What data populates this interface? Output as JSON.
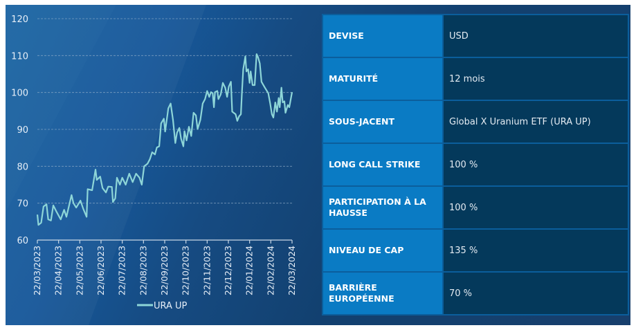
{
  "colors": {
    "line": "#8ed6d8",
    "grid": "#9fb8d0",
    "label_bg": "#0a7bc4",
    "value_bg": "#04395b"
  },
  "chart_data": {
    "type": "line",
    "title": "",
    "xlabel": "",
    "ylabel": "",
    "ylim": [
      60,
      120
    ],
    "yticks": [
      "60",
      "70",
      "80",
      "90",
      "100",
      "110",
      "120"
    ],
    "xticks": [
      "22/03/2023",
      "22/04/2023",
      "22/05/2023",
      "22/06/2023",
      "22/07/2023",
      "22/08/2023",
      "22/09/2023",
      "22/10/2023",
      "22/11/2023",
      "22/12/2023",
      "22/01/2024",
      "22/02/2024",
      "22/03/2024"
    ],
    "x_unit": "months since 22/03/2023",
    "grid": true,
    "legend": {
      "placement": "bottom",
      "entries": [
        "URA UP"
      ]
    },
    "series": [
      {
        "name": "URA UP",
        "x": [
          0,
          0.05,
          0.18,
          0.29,
          0.43,
          0.51,
          0.64,
          0.75,
          0.89,
          1.1,
          1.26,
          1.37,
          1.61,
          1.7,
          1.83,
          2.03,
          2.16,
          2.32,
          2.37,
          2.58,
          2.74,
          2.8,
          2.96,
          3.07,
          3.23,
          3.34,
          3.51,
          3.56,
          3.67,
          3.75,
          3.89,
          4,
          4.16,
          4.33,
          4.49,
          4.65,
          4.81,
          4.92,
          5.03,
          5.19,
          5.3,
          5.41,
          5.54,
          5.63,
          5.74,
          5.83,
          5.96,
          6.02,
          6.17,
          6.28,
          6.39,
          6.5,
          6.58,
          6.69,
          6.77,
          6.88,
          6.93,
          7.03,
          7.14,
          7.25,
          7.36,
          7.47,
          7.55,
          7.68,
          7.79,
          7.9,
          8,
          8.1,
          8.18,
          8.26,
          8.32,
          8.37,
          8.48,
          8.53,
          8.64,
          8.74,
          8.85,
          8.94,
          9.02,
          9.12,
          9.18,
          9.34,
          9.42,
          9.5,
          9.59,
          9.64,
          9.7,
          9.8,
          9.85,
          9.93,
          10,
          10.05,
          10.14,
          10.24,
          10.33,
          10.4,
          10.48,
          10.56,
          10.72,
          10.88,
          10.97,
          11.05,
          11.12,
          11.21,
          11.29,
          11.37,
          11.42,
          11.5,
          11.56,
          11.64,
          11.69,
          11.8,
          11.87,
          12
        ],
        "values": [
          66.9,
          64.1,
          64.7,
          69.1,
          69.7,
          65.6,
          65.3,
          69.4,
          67.8,
          65.6,
          68.2,
          66.3,
          72.2,
          70,
          68.8,
          70.7,
          68.5,
          66.3,
          73.8,
          73.5,
          79.1,
          76.3,
          77.2,
          74.1,
          72.9,
          74.5,
          74.4,
          70.3,
          71.3,
          76.9,
          75,
          76.9,
          75,
          78,
          75.7,
          78,
          76.9,
          75,
          80,
          80.7,
          81.9,
          83.8,
          83.2,
          85.1,
          85.4,
          91.6,
          92.9,
          89.4,
          95.7,
          97,
          92.6,
          86.3,
          89.1,
          90.4,
          87.5,
          85.4,
          89.5,
          87,
          90.7,
          88.2,
          94.5,
          93.8,
          90.1,
          92.6,
          97,
          98.2,
          100.4,
          98.8,
          100.1,
          99.8,
          96,
          100.1,
          100.4,
          98.2,
          99.5,
          102.6,
          101.3,
          98.8,
          101.6,
          102.9,
          94.8,
          94.1,
          92.3,
          93.5,
          94.1,
          100.1,
          106.3,
          109.8,
          105.7,
          106.3,
          102.6,
          105.7,
          102,
          102,
          110.4,
          109.5,
          107.9,
          102.9,
          101.3,
          99.8,
          97,
          94.1,
          93.2,
          97.3,
          94.8,
          98.5,
          96,
          101.3,
          97.3,
          97.6,
          94.5,
          96.6,
          96,
          100.1
        ]
      }
    ]
  },
  "table": [
    {
      "label": "DEVISE",
      "value": "USD"
    },
    {
      "label": "MATURITÉ",
      "value": "12 mois"
    },
    {
      "label": "SOUS-JACENT",
      "value": "Global X Uranium ETF (URA UP)"
    },
    {
      "label": "LONG CALL STRIKE",
      "value": "100 %"
    },
    {
      "label": "PARTICIPATION À LA HAUSSE",
      "value": "100 %"
    },
    {
      "label": "NIVEAU DE CAP",
      "value": "135 %"
    },
    {
      "label": "BARRIÈRE EUROPÉENNE",
      "value": "70 %"
    }
  ]
}
